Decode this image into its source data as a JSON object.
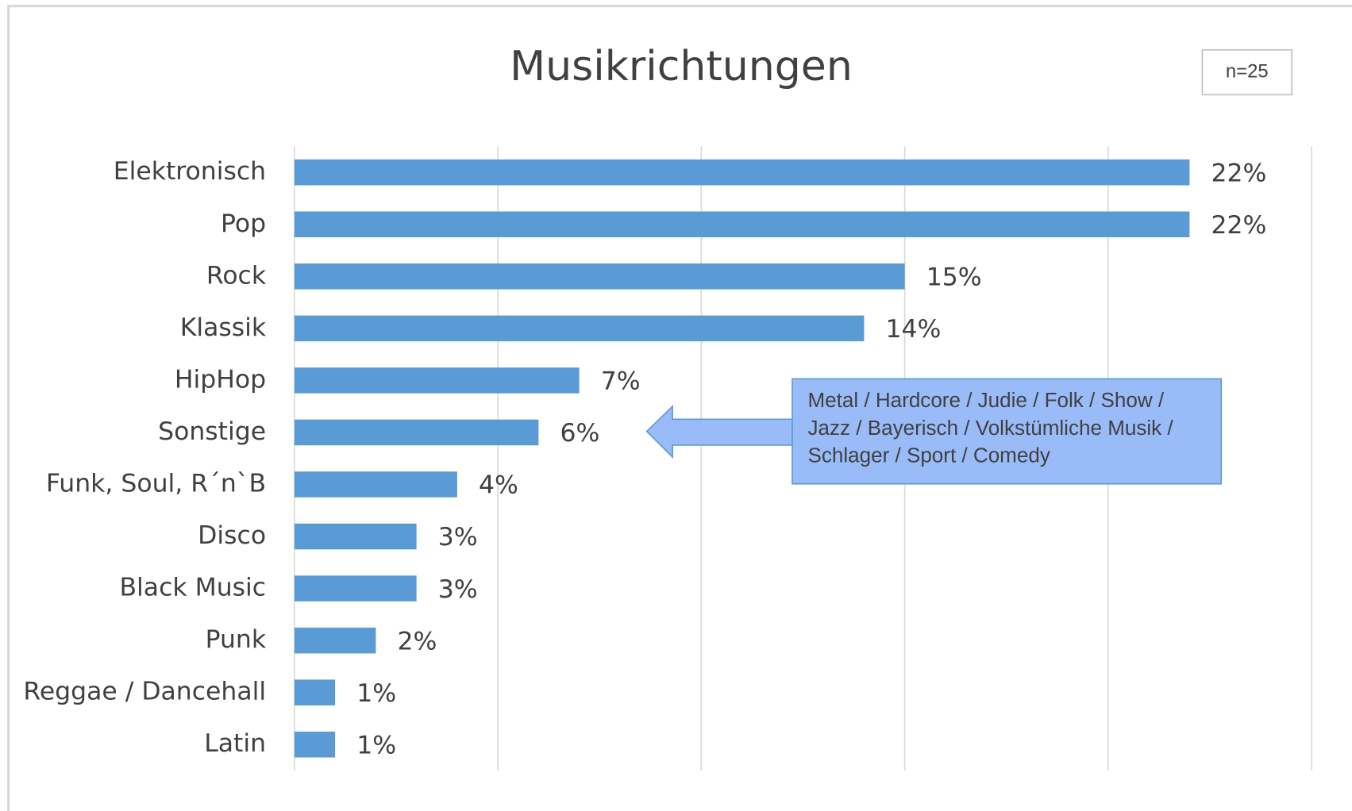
{
  "chart_data": {
    "type": "bar",
    "orientation": "horizontal",
    "title": "Musikrichtungen",
    "sample_note": "n=25",
    "annotation": "Metal / Hardcore / Judie / Folk / Show / Jazz / Bayerisch / Volkstümliche Musik / Schlager / Sport / Comedy",
    "categories": [
      "Elektronisch",
      "Pop",
      "Rock",
      "Klassik",
      "HipHop",
      "Sonstige",
      "Funk, Soul, R´n`B",
      "Disco",
      "Black Music",
      "Punk",
      "Reggae / Dancehall",
      "Latin"
    ],
    "values": [
      22,
      22,
      15,
      14,
      7,
      6,
      4,
      3,
      3,
      2,
      1,
      1
    ],
    "value_labels": [
      "22%",
      "22%",
      "15%",
      "14%",
      "7%",
      "6%",
      "4%",
      "3%",
      "3%",
      "2%",
      "1%",
      "1%"
    ],
    "color": "#5b9bd5",
    "xlim": [
      0,
      25
    ],
    "xticks": [
      0,
      5,
      10,
      15,
      20,
      25
    ],
    "grid": true
  }
}
